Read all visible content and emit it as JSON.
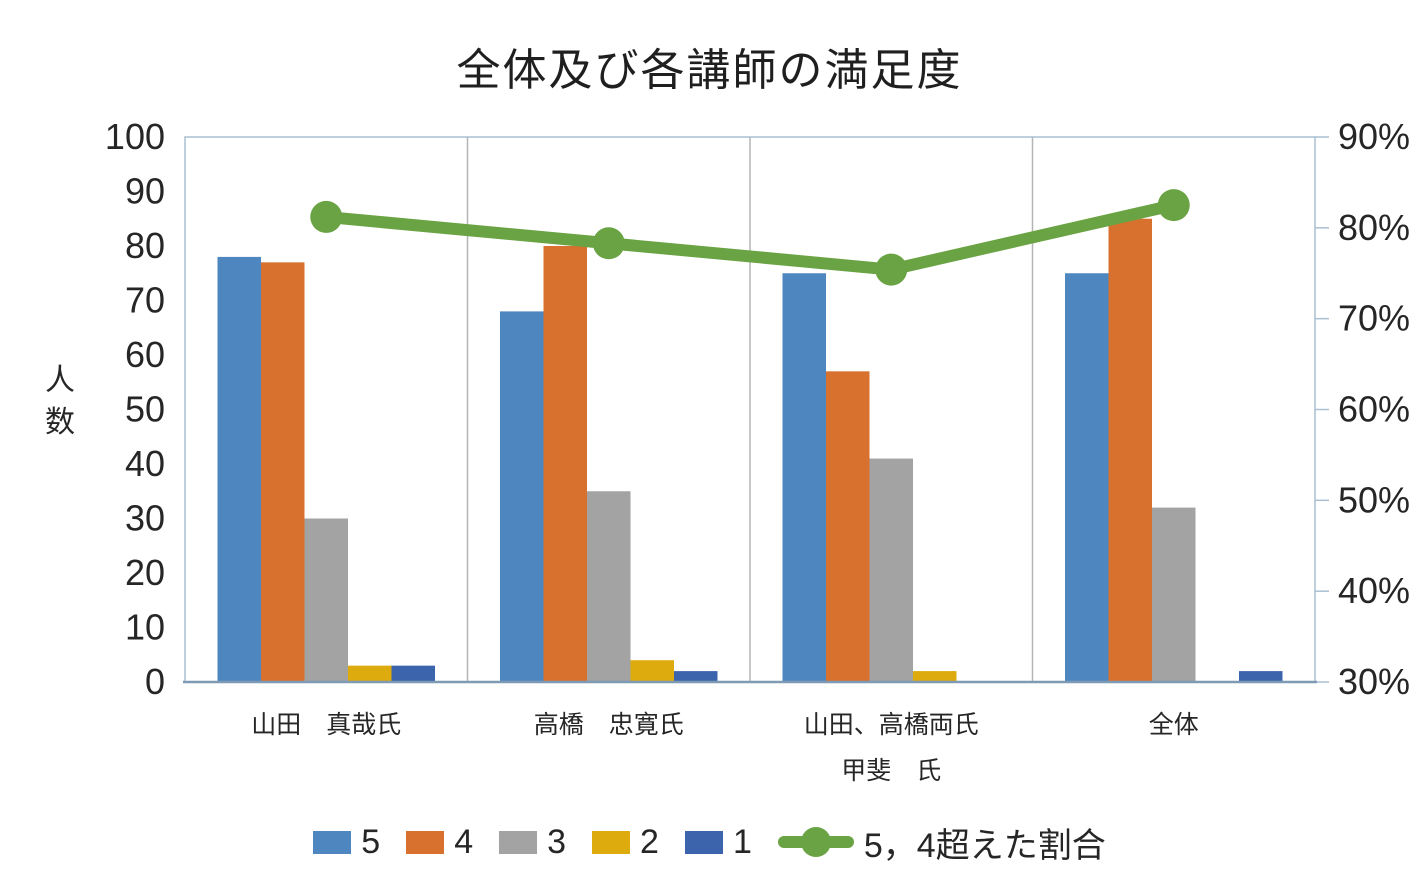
{
  "chart_data": {
    "type": "combo (bar + line, dual axis)",
    "title": "全体及び各講師の満足度",
    "categories": [
      [
        "山田　真哉氏"
      ],
      [
        "高橋　忠寛氏"
      ],
      [
        "山田、高橋両氏",
        "甲斐　氏"
      ],
      [
        "全体"
      ]
    ],
    "bar_series": [
      {
        "name": "5",
        "color": "#4E86C0",
        "values": [
          78,
          68,
          75,
          75
        ]
      },
      {
        "name": "4",
        "color": "#D9712E",
        "values": [
          77,
          80,
          57,
          85
        ]
      },
      {
        "name": "3",
        "color": "#A3A3A3",
        "values": [
          30,
          35,
          41,
          32
        ]
      },
      {
        "name": "2",
        "color": "#DDAB0D",
        "values": [
          3,
          4,
          2,
          0
        ]
      },
      {
        "name": "1",
        "color": "#3C64AC",
        "values": [
          3,
          2,
          0,
          2
        ]
      }
    ],
    "line_series": {
      "name": "5，4超えた割合",
      "color": "#6AA343",
      "axis": "right",
      "values_pct": [
        81.2,
        78.3,
        75.4,
        82.5
      ]
    },
    "left_axis": {
      "title": "人数",
      "min": 0,
      "max": 100,
      "step": 10,
      "tick_labels": [
        "0",
        "10",
        "20",
        "30",
        "40",
        "50",
        "60",
        "70",
        "80",
        "90",
        "100"
      ]
    },
    "right_axis": {
      "min": 30,
      "max": 90,
      "step": 10,
      "unit": "%",
      "tick_labels": [
        "30%",
        "40%",
        "50%",
        "60%",
        "70%",
        "80%",
        "90%"
      ]
    },
    "legend_position": "bottom",
    "gridlines": "vertical category separators only",
    "frame_color": "#A9BFD3",
    "baseline_color": "#7E9AB5",
    "divider_color": "#B5B5B5",
    "text_color": "#262626"
  }
}
